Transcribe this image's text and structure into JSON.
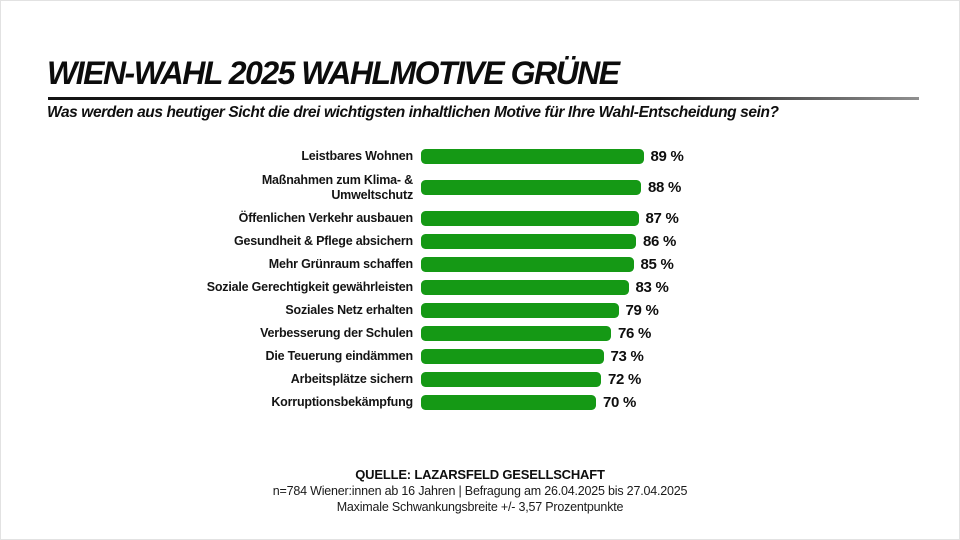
{
  "canvas": {
    "background": "#ffffff",
    "border_color": "#e2e2e2"
  },
  "header": {
    "title": "WIEN-WAHL 2025 WAHLMOTIVE GRÜNE",
    "subtitle": "Was werden aus heutiger Sicht die drei wichtigsten inhaltlichen Motive für Ihre Wahl-Entscheidung sein?"
  },
  "chart_data": {
    "type": "bar",
    "orientation": "horizontal",
    "title": "WIEN-WAHL 2025 WAHLMOTIVE GRÜNE",
    "categories": [
      "Leistbares Wohnen",
      "Maßnahmen zum Klima- &\nUmweltschutz",
      "Öffenlichen Verkehr ausbauen",
      "Gesundheit & Pflege absichern",
      "Mehr Grünraum schaffen",
      "Soziale Gerechtigkeit gewährleisten",
      "Soziales Netz erhalten",
      "Verbesserung der Schulen",
      "Die Teuerung eindämmen",
      "Arbeitsplätze sichern",
      "Korruptionsbekämpfung"
    ],
    "values": [
      89,
      88,
      87,
      86,
      85,
      83,
      79,
      76,
      73,
      72,
      70
    ],
    "value_suffix": " %",
    "bar_color": "#159915",
    "xlim": [
      0,
      100
    ],
    "grid": false,
    "legend": false
  },
  "footer": {
    "source": "QUELLE: LAZARSFELD GESELLSCHAFT",
    "sample_info": "n=784 Wiener:innen ab 16 Jahren | Befragung am 26.04.2025 bis 27.04.2025",
    "margin_of_error": "Maximale Schwankungsbreite +/- 3,57 Prozentpunkte"
  }
}
